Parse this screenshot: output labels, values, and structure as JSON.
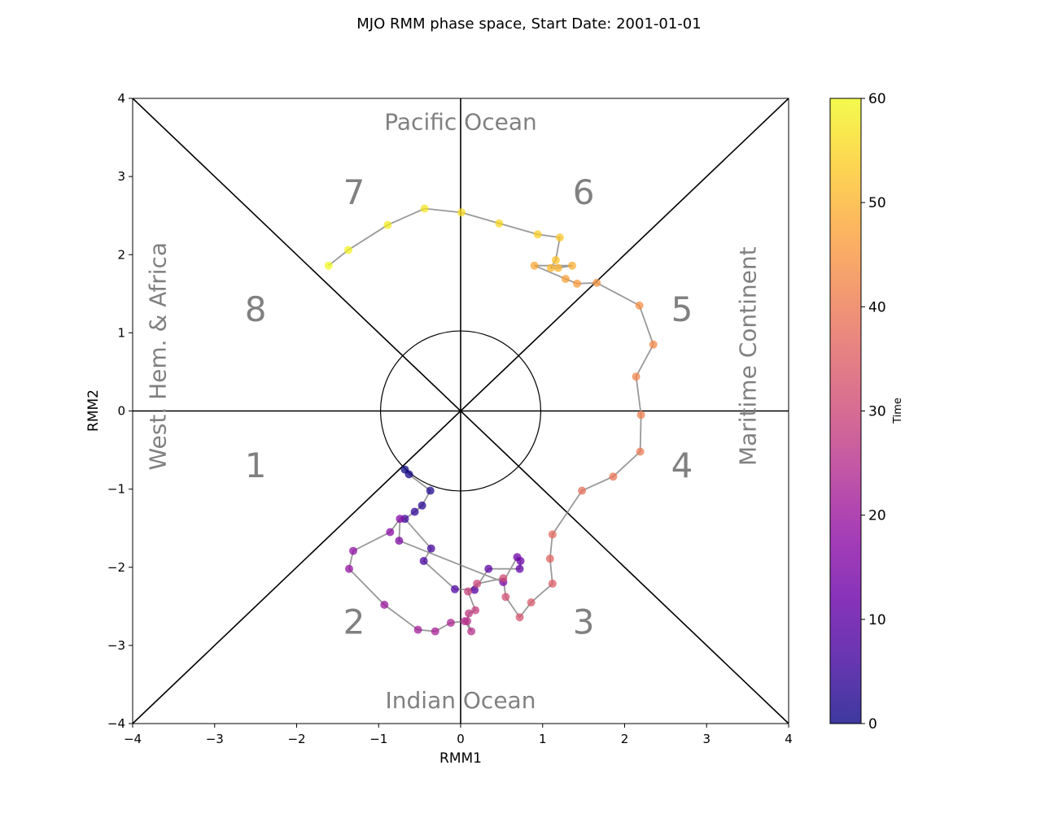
{
  "chart_data": {
    "type": "scatter",
    "title": "MJO RMM phase space, Start Date: 2001-01-01",
    "xlabel": "RMM1",
    "ylabel": "RMM2",
    "xlim": [
      -4,
      4
    ],
    "ylim": [
      -4,
      4
    ],
    "x_ticks": [
      "−4",
      "−3",
      "−2",
      "−1",
      "0",
      "1",
      "2",
      "3",
      "4"
    ],
    "y_ticks": [
      "−4",
      "−3",
      "−2",
      "−1",
      "0",
      "1",
      "2",
      "3",
      "4"
    ],
    "phase_labels": [
      "1",
      "2",
      "3",
      "4",
      "5",
      "6",
      "7",
      "8"
    ],
    "regions": {
      "top": "Pacific Ocean",
      "bottom": "Indian Ocean",
      "left": "West. Hem. & Africa",
      "right": "Maritime Continent"
    },
    "colorbar": {
      "label": "Time",
      "range": [
        0,
        60
      ],
      "ticks": [
        "0",
        "10",
        "20",
        "30",
        "40",
        "50",
        "60"
      ],
      "colormap": "plasma"
    },
    "line_color": "#808080",
    "series": [
      {
        "color_by": "time",
        "points": [
          {
            "t": 0,
            "x": -0.68,
            "y": -0.75
          },
          {
            "t": 1,
            "x": -0.63,
            "y": -0.81
          },
          {
            "t": 2,
            "x": -0.37,
            "y": -1.02
          },
          {
            "t": 3,
            "x": -0.47,
            "y": -1.21
          },
          {
            "t": 4,
            "x": -0.56,
            "y": -1.29
          },
          {
            "t": 5,
            "x": -0.68,
            "y": -1.38
          },
          {
            "t": 6,
            "x": -0.36,
            "y": -1.76
          },
          {
            "t": 7,
            "x": -0.45,
            "y": -1.92
          },
          {
            "t": 8,
            "x": -0.07,
            "y": -2.28
          },
          {
            "t": 9,
            "x": 0.17,
            "y": -2.29
          },
          {
            "t": 10,
            "x": 0.34,
            "y": -2.02
          },
          {
            "t": 11,
            "x": 0.72,
            "y": -2.02
          },
          {
            "t": 12,
            "x": 0.73,
            "y": -1.92
          },
          {
            "t": 13,
            "x": 0.69,
            "y": -1.87
          },
          {
            "t": 14,
            "x": 0.52,
            "y": -2.19
          },
          {
            "t": 15,
            "x": -0.75,
            "y": -1.66
          },
          {
            "t": 16,
            "x": -0.74,
            "y": -1.38
          },
          {
            "t": 17,
            "x": -0.86,
            "y": -1.55
          },
          {
            "t": 18,
            "x": -1.31,
            "y": -1.79
          },
          {
            "t": 19,
            "x": -1.36,
            "y": -2.02
          },
          {
            "t": 20,
            "x": -0.93,
            "y": -2.48
          },
          {
            "t": 21,
            "x": -0.52,
            "y": -2.8
          },
          {
            "t": 22,
            "x": -0.31,
            "y": -2.82
          },
          {
            "t": 23,
            "x": -0.12,
            "y": -2.71
          },
          {
            "t": 24,
            "x": 0.05,
            "y": -2.69
          },
          {
            "t": 25,
            "x": 0.13,
            "y": -2.82
          },
          {
            "t": 26,
            "x": 0.08,
            "y": -2.69
          },
          {
            "t": 27,
            "x": 0.1,
            "y": -2.59
          },
          {
            "t": 28,
            "x": 0.18,
            "y": -2.55
          },
          {
            "t": 29,
            "x": 0.09,
            "y": -2.31
          },
          {
            "t": 30,
            "x": 0.2,
            "y": -2.21
          },
          {
            "t": 31,
            "x": 0.52,
            "y": -2.14
          },
          {
            "t": 32,
            "x": 0.55,
            "y": -2.38
          },
          {
            "t": 33,
            "x": 0.72,
            "y": -2.64
          },
          {
            "t": 34,
            "x": 0.86,
            "y": -2.45
          },
          {
            "t": 35,
            "x": 1.12,
            "y": -2.21
          },
          {
            "t": 36,
            "x": 1.09,
            "y": -1.89
          },
          {
            "t": 37,
            "x": 1.12,
            "y": -1.58
          },
          {
            "t": 38,
            "x": 1.48,
            "y": -1.02
          },
          {
            "t": 39,
            "x": 1.86,
            "y": -0.84
          },
          {
            "t": 40,
            "x": 2.19,
            "y": -0.52
          },
          {
            "t": 41,
            "x": 2.2,
            "y": -0.05
          },
          {
            "t": 42,
            "x": 2.14,
            "y": 0.44
          },
          {
            "t": 43,
            "x": 2.35,
            "y": 0.85
          },
          {
            "t": 44,
            "x": 2.18,
            "y": 1.35
          },
          {
            "t": 45,
            "x": 1.66,
            "y": 1.64
          },
          {
            "t": 46,
            "x": 1.42,
            "y": 1.63
          },
          {
            "t": 47,
            "x": 1.28,
            "y": 1.69
          },
          {
            "t": 48,
            "x": 0.9,
            "y": 1.86
          },
          {
            "t": 49,
            "x": 1.36,
            "y": 1.86
          },
          {
            "t": 50,
            "x": 1.19,
            "y": 1.83
          },
          {
            "t": 51,
            "x": 1.1,
            "y": 1.83
          },
          {
            "t": 52,
            "x": 1.16,
            "y": 1.93
          },
          {
            "t": 53,
            "x": 1.21,
            "y": 2.22
          },
          {
            "t": 54,
            "x": 0.94,
            "y": 2.26
          },
          {
            "t": 55,
            "x": 0.47,
            "y": 2.4
          },
          {
            "t": 56,
            "x": 0.01,
            "y": 2.54
          },
          {
            "t": 57,
            "x": -0.44,
            "y": 2.59
          },
          {
            "t": 58,
            "x": -0.89,
            "y": 2.38
          },
          {
            "t": 59,
            "x": -1.37,
            "y": 2.06
          },
          {
            "t": 60,
            "x": -1.61,
            "y": 1.86
          }
        ]
      }
    ]
  }
}
